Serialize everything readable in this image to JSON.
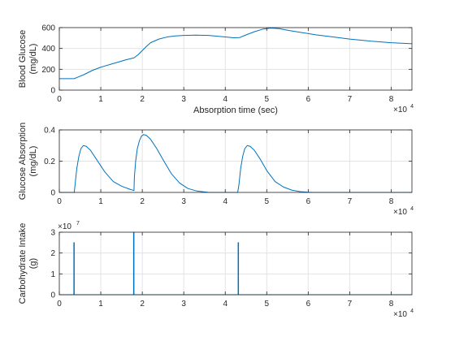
{
  "chart_data": [
    {
      "type": "line",
      "xlabel": "Absorption time (sec)",
      "ylabel": [
        "Blood Glucose",
        "(mg/dL)"
      ],
      "xlim": [
        0,
        85000
      ],
      "ylim": [
        0,
        600
      ],
      "x_ticks": [
        0,
        1,
        2,
        3,
        4,
        5,
        6,
        7,
        8
      ],
      "x_tick_labels": [
        "0",
        "1",
        "2",
        "3",
        "4",
        "5",
        "6",
        "7",
        "8"
      ],
      "x_exponent": {
        "base": "×10",
        "power": "4"
      },
      "y_ticks": [
        0,
        200,
        400,
        600
      ],
      "y_tick_labels": [
        "0",
        "200",
        "400",
        "600"
      ],
      "grid": true,
      "line_color": "#0072bd",
      "series": [
        {
          "x": [
            0,
            3600,
            4200,
            6000,
            8000,
            10000,
            13000,
            16000,
            18000,
            19000,
            20000,
            21000,
            22000,
            24000,
            26000,
            28000,
            30000,
            33000,
            36000,
            40000,
            42000,
            43500,
            45000,
            47000,
            49000,
            51000,
            53000,
            55000,
            58000,
            62000,
            66000,
            70000,
            75000,
            80000,
            85000
          ],
          "y": [
            110,
            110,
            120,
            150,
            190,
            220,
            255,
            290,
            310,
            340,
            380,
            420,
            455,
            490,
            510,
            520,
            525,
            528,
            525,
            510,
            503,
            505,
            530,
            560,
            585,
            595,
            590,
            575,
            555,
            530,
            510,
            490,
            470,
            455,
            445
          ]
        }
      ]
    },
    {
      "type": "line",
      "xlabel": "",
      "ylabel": [
        "Glucose Absorption",
        "(mg/dL)"
      ],
      "xlim": [
        0,
        85000
      ],
      "ylim": [
        0,
        0.4
      ],
      "x_ticks": [
        0,
        1,
        2,
        3,
        4,
        5,
        6,
        7,
        8
      ],
      "x_tick_labels": [
        "0",
        "1",
        "2",
        "3",
        "4",
        "5",
        "6",
        "7",
        "8"
      ],
      "x_exponent": {
        "base": "×10",
        "power": "4"
      },
      "y_ticks": [
        0,
        0.2,
        0.4
      ],
      "y_tick_labels": [
        "0",
        "0.2",
        "0.4"
      ],
      "grid": true,
      "line_color": "#0072bd",
      "series": [
        {
          "x": [
            0,
            3600,
            3800,
            4200,
            4700,
            5200,
            5800,
            6500,
            7500,
            9000,
            11000,
            13000,
            15000,
            17000,
            18000,
            18100,
            18400,
            18800,
            19300,
            19800,
            20300,
            21000,
            22000,
            23500,
            25000,
            27000,
            29000,
            31000,
            33000,
            35000,
            36000,
            43000,
            43300,
            43700,
            44200,
            44700,
            45300,
            46000,
            47000,
            48500,
            50000,
            52000,
            54000,
            56000,
            58000,
            60000,
            61000,
            85000
          ],
          "y": [
            0,
            0,
            0.05,
            0.15,
            0.23,
            0.28,
            0.3,
            0.295,
            0.27,
            0.21,
            0.13,
            0.07,
            0.04,
            0.02,
            0.012,
            0.1,
            0.2,
            0.28,
            0.33,
            0.36,
            0.37,
            0.365,
            0.34,
            0.28,
            0.21,
            0.12,
            0.06,
            0.025,
            0.01,
            0.003,
            0,
            0,
            0.05,
            0.15,
            0.23,
            0.28,
            0.3,
            0.295,
            0.27,
            0.21,
            0.14,
            0.07,
            0.035,
            0.015,
            0.005,
            0.001,
            0,
            0
          ]
        }
      ]
    },
    {
      "type": "line",
      "xlabel": "",
      "ylabel": [
        "Carbohydrate Intake",
        "(g)"
      ],
      "xlim": [
        0,
        85000
      ],
      "ylim": [
        0,
        3
      ],
      "x_ticks": [
        0,
        1,
        2,
        3,
        4,
        5,
        6,
        7,
        8
      ],
      "x_tick_labels": [
        "0",
        "1",
        "2",
        "3",
        "4",
        "5",
        "6",
        "7",
        "8"
      ],
      "x_exponent": {
        "base": "×10",
        "power": "4"
      },
      "y_ticks": [
        0,
        1,
        2,
        3
      ],
      "y_tick_labels": [
        "0",
        "1",
        "2",
        "3"
      ],
      "y_exponent": {
        "base": "×10",
        "power": "7"
      },
      "grid": true,
      "line_color": "#0072bd",
      "series": [
        {
          "x": [
            0,
            3500,
            3500,
            3600,
            3600,
            17900,
            17900,
            18000,
            18000,
            43100,
            43100,
            43200,
            43200,
            85000
          ],
          "y": [
            0,
            0,
            2.5,
            2.5,
            0,
            0,
            3,
            3,
            0,
            0,
            2.5,
            2.5,
            0,
            0
          ]
        }
      ]
    }
  ]
}
